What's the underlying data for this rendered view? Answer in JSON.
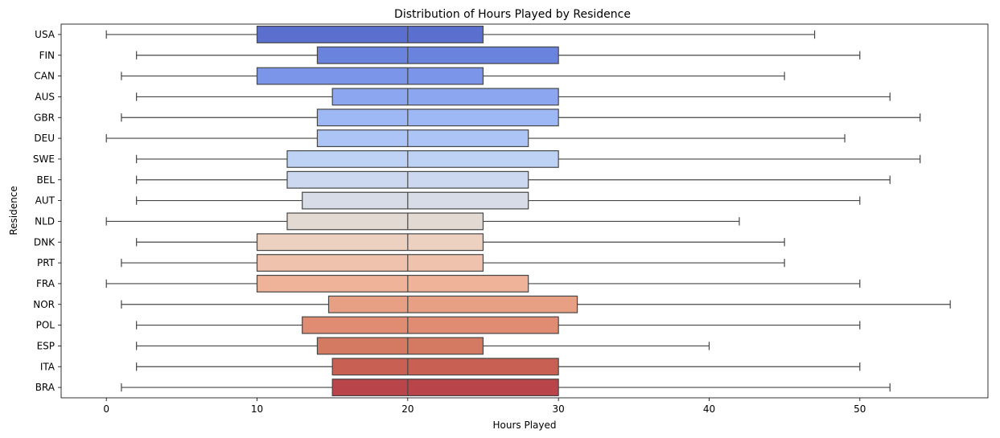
{
  "chart_data": {
    "type": "boxplot",
    "orientation": "horizontal",
    "title": "Distribution of Hours Played by Residence",
    "xlabel": "Hours Played",
    "ylabel": "Residence",
    "xlim": [
      -3,
      58.5
    ],
    "xticks": [
      0,
      10,
      20,
      30,
      40,
      50
    ],
    "grid": false,
    "categories": [
      "USA",
      "FIN",
      "CAN",
      "AUS",
      "GBR",
      "DEU",
      "SWE",
      "BEL",
      "AUT",
      "NLD",
      "DNK",
      "PRT",
      "FRA",
      "NOR",
      "POL",
      "ESP",
      "ITA",
      "BRA"
    ],
    "boxes": [
      {
        "label": "USA",
        "whisker_low": 0,
        "q1": 10,
        "median": 20,
        "q3": 25,
        "whisker_high": 47,
        "color": "#5a6fce"
      },
      {
        "label": "FIN",
        "whisker_low": 2,
        "q1": 14,
        "median": 20,
        "q3": 30,
        "whisker_high": 50,
        "color": "#6a83dd"
      },
      {
        "label": "CAN",
        "whisker_low": 1,
        "q1": 10,
        "median": 20,
        "q3": 25,
        "whisker_high": 45,
        "color": "#7b95e8"
      },
      {
        "label": "AUS",
        "whisker_low": 2,
        "q1": 15,
        "median": 20,
        "q3": 30,
        "whisker_high": 52,
        "color": "#8ca7ef"
      },
      {
        "label": "GBR",
        "whisker_low": 1,
        "q1": 14,
        "median": 20,
        "q3": 30,
        "whisker_high": 54,
        "color": "#9db8f5"
      },
      {
        "label": "DEU",
        "whisker_low": 0,
        "q1": 14,
        "median": 20,
        "q3": 28,
        "whisker_high": 49,
        "color": "#adc5f6"
      },
      {
        "label": "SWE",
        "whisker_low": 2,
        "q1": 12,
        "median": 20,
        "q3": 30,
        "whisker_high": 54,
        "color": "#bed2f5"
      },
      {
        "label": "BEL",
        "whisker_low": 2,
        "q1": 12,
        "median": 20,
        "q3": 28,
        "whisker_high": 52,
        "color": "#cbd8ef"
      },
      {
        "label": "AUT",
        "whisker_low": 2,
        "q1": 13,
        "median": 20,
        "q3": 28,
        "whisker_high": 50,
        "color": "#d8dce6"
      },
      {
        "label": "NLD",
        "whisker_low": 0,
        "q1": 12,
        "median": 20,
        "q3": 25,
        "whisker_high": 42,
        "color": "#e3d9d3"
      },
      {
        "label": "DNK",
        "whisker_low": 2,
        "q1": 10,
        "median": 20,
        "q3": 25,
        "whisker_high": 45,
        "color": "#ecd0c0"
      },
      {
        "label": "PRT",
        "whisker_low": 1,
        "q1": 10,
        "median": 20,
        "q3": 25,
        "whisker_high": 45,
        "color": "#efc2ad"
      },
      {
        "label": "FRA",
        "whisker_low": 0,
        "q1": 10,
        "median": 20,
        "q3": 28,
        "whisker_high": 50,
        "color": "#eeb398"
      },
      {
        "label": "NOR",
        "whisker_low": 1,
        "q1": 14.75,
        "median": 20,
        "q3": 31.25,
        "whisker_high": 56,
        "color": "#e8a085"
      },
      {
        "label": "POL",
        "whisker_low": 2,
        "q1": 13,
        "median": 20,
        "q3": 30,
        "whisker_high": 50,
        "color": "#df8c72"
      },
      {
        "label": "ESP",
        "whisker_low": 2,
        "q1": 14,
        "median": 20,
        "q3": 25,
        "whisker_high": 40,
        "color": "#d47962"
      },
      {
        "label": "ITA",
        "whisker_low": 2,
        "q1": 15,
        "median": 20,
        "q3": 30,
        "whisker_high": 50,
        "color": "#c86153"
      },
      {
        "label": "BRA",
        "whisker_low": 1,
        "q1": 15,
        "median": 20,
        "q3": 30,
        "whisker_high": 52,
        "color": "#b9444a"
      }
    ]
  }
}
